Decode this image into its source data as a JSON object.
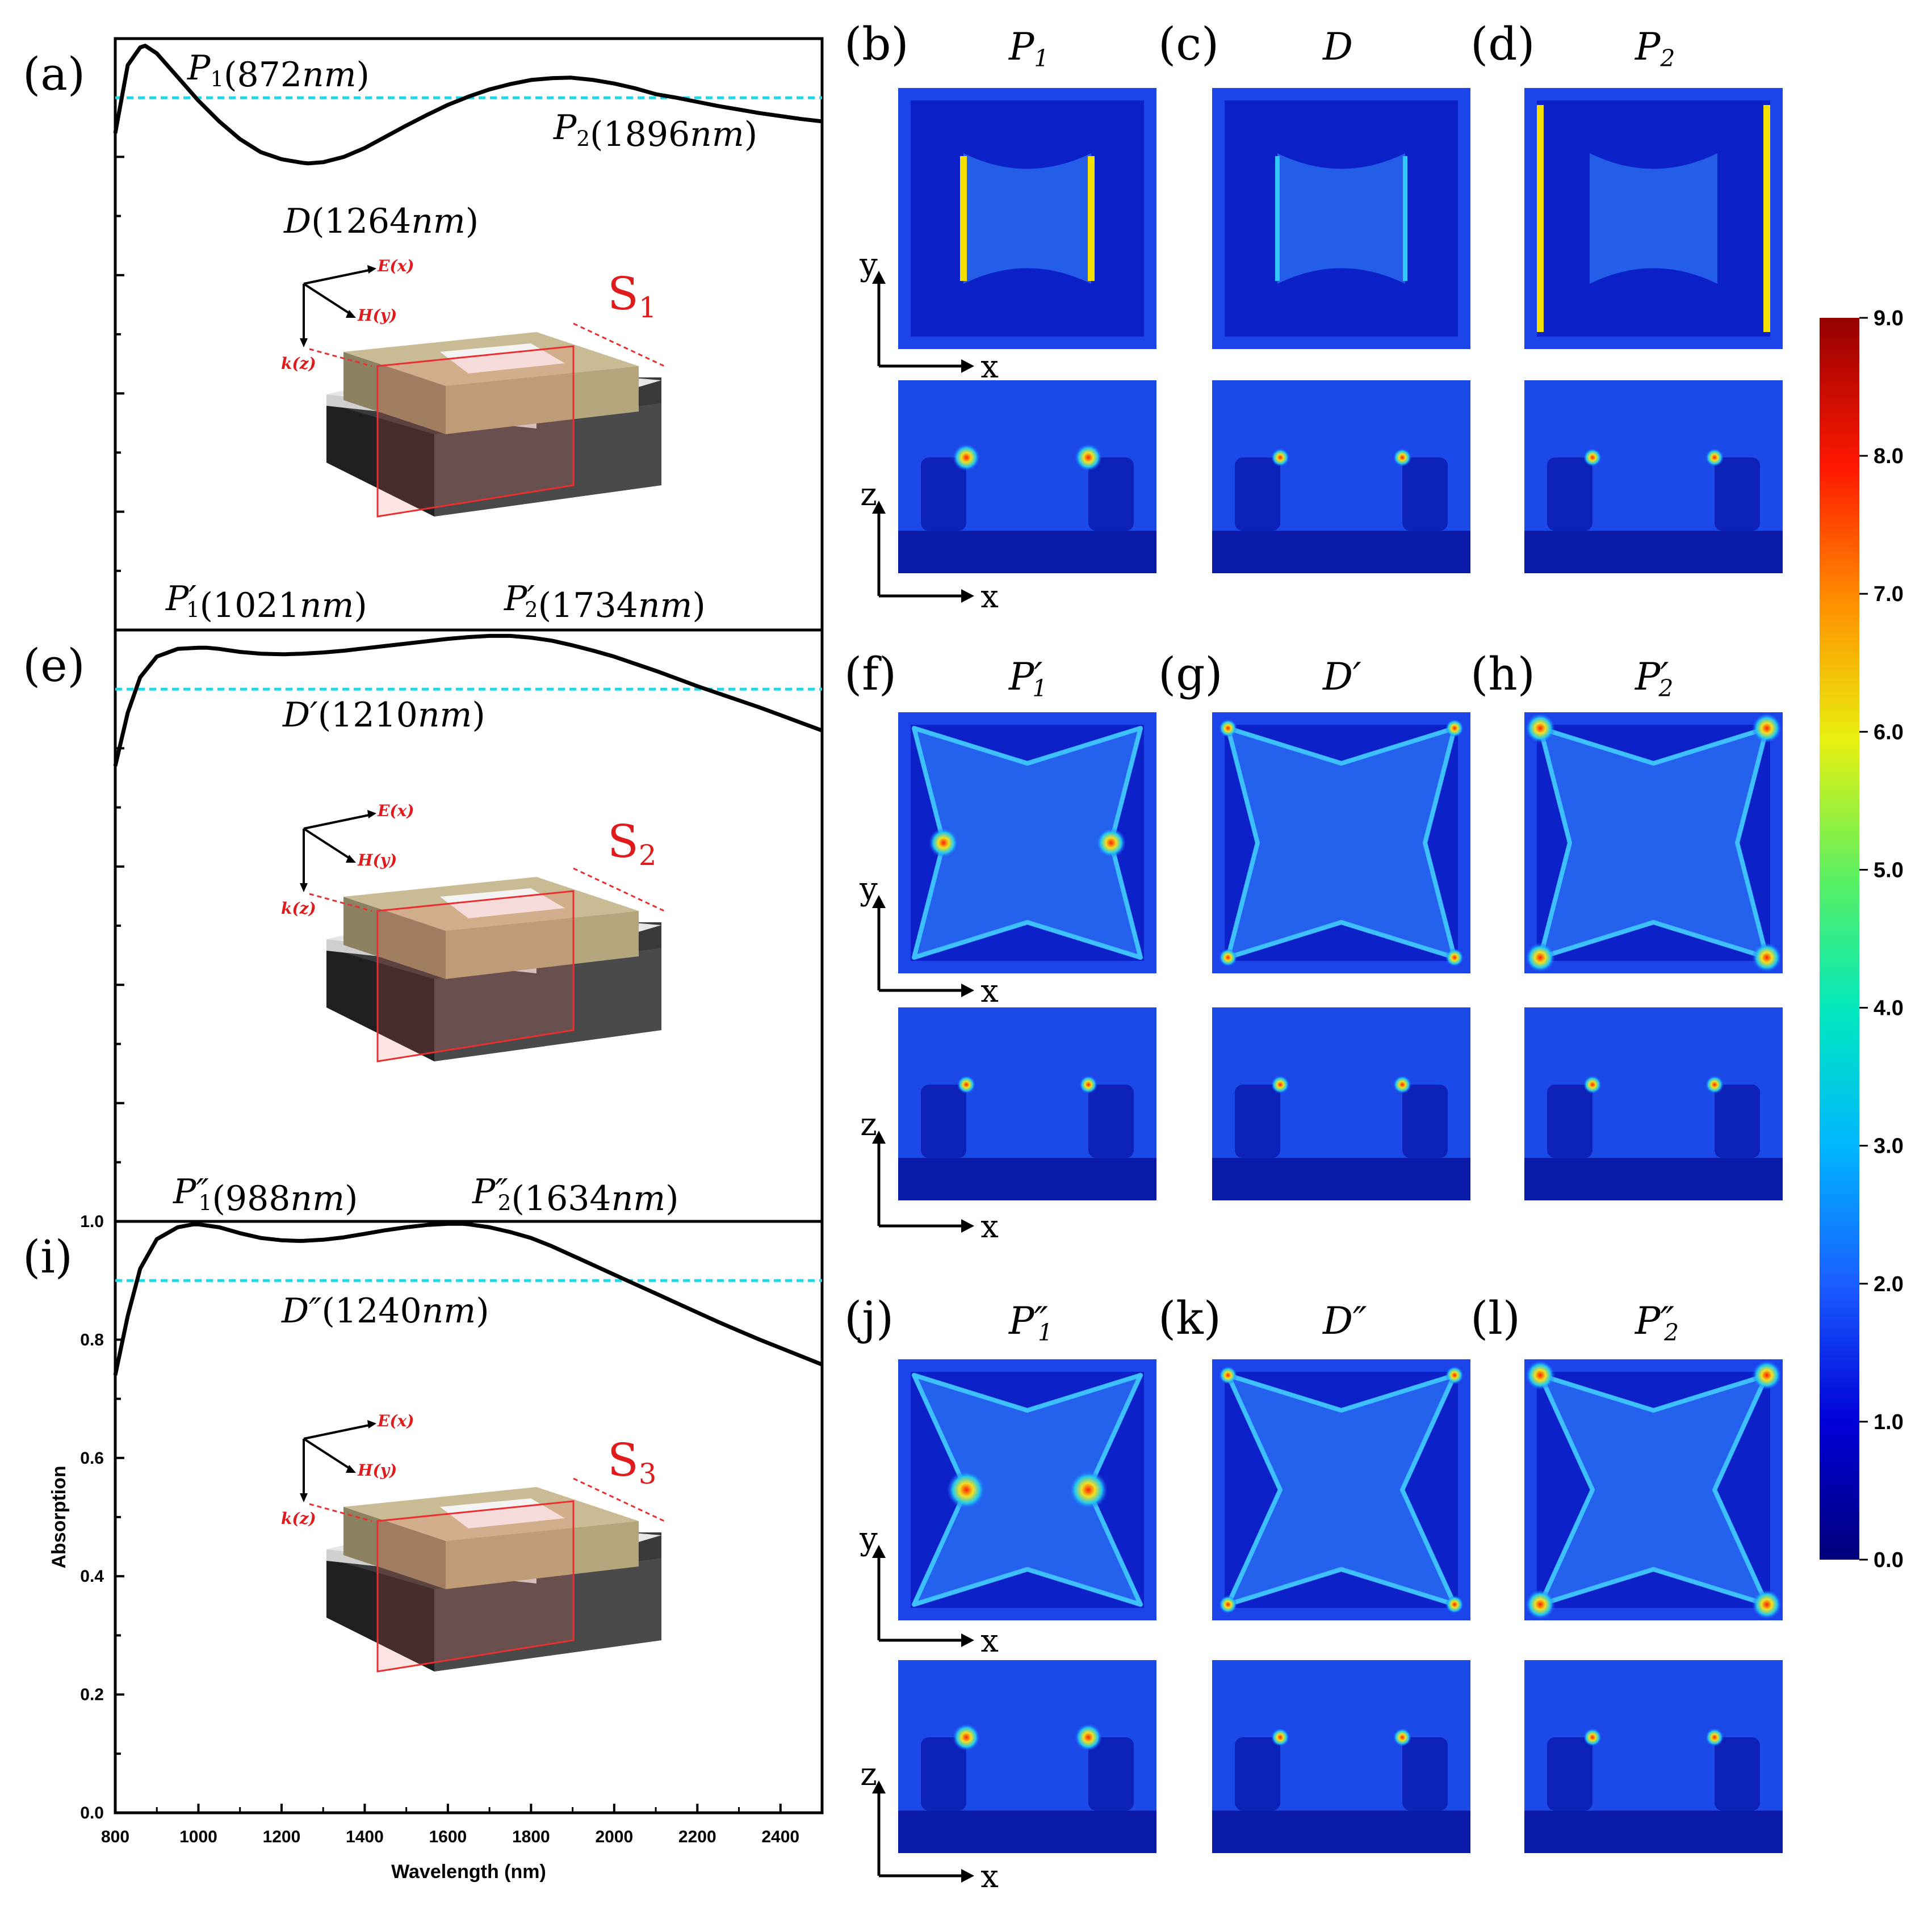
{
  "chart_data": {
    "type": "line",
    "xlabel": "Wavelength (nm)",
    "ylabel": "Absorption",
    "xlim": [
      800,
      2500
    ],
    "ylim": [
      0.0,
      1.0
    ],
    "xticks": [
      "800",
      "1000",
      "1200",
      "1400",
      "1600",
      "1800",
      "2000",
      "2200",
      "2400"
    ],
    "yticks": [
      "0.0",
      "0.2",
      "0.4",
      "0.6",
      "0.8",
      "1.0"
    ],
    "threshold": 0.9,
    "panels": [
      {
        "label": "(a)",
        "structure": "S",
        "structure_sub": "1",
        "series": {
          "x": [
            800,
            830,
            860,
            872,
            900,
            950,
            1000,
            1050,
            1100,
            1150,
            1200,
            1250,
            1264,
            1300,
            1350,
            1400,
            1450,
            1500,
            1550,
            1600,
            1650,
            1700,
            1750,
            1800,
            1850,
            1896,
            1950,
            2000,
            2050,
            2100,
            2150,
            2200,
            2250,
            2300,
            2350,
            2400,
            2450,
            2500
          ],
          "y": [
            0.84,
            0.955,
            0.985,
            0.988,
            0.975,
            0.935,
            0.895,
            0.86,
            0.83,
            0.808,
            0.796,
            0.79,
            0.789,
            0.791,
            0.8,
            0.815,
            0.834,
            0.853,
            0.871,
            0.888,
            0.902,
            0.914,
            0.923,
            0.93,
            0.933,
            0.934,
            0.93,
            0.924,
            0.916,
            0.906,
            0.9,
            0.893,
            0.886,
            0.88,
            0.874,
            0.869,
            0.864,
            0.86
          ]
        },
        "annotations": [
          {
            "sym": "P",
            "sub": "1",
            "prime": "",
            "text": "(872nm)"
          },
          {
            "sym": "P",
            "sub": "2",
            "prime": "",
            "text": "(1896nm)"
          },
          {
            "sym": "D",
            "sub": "",
            "prime": "",
            "text": "(1264nm)"
          }
        ]
      },
      {
        "label": "(e)",
        "structure": "S",
        "structure_sub": "2",
        "series": {
          "x": [
            800,
            830,
            860,
            900,
            950,
            1000,
            1021,
            1050,
            1100,
            1150,
            1200,
            1210,
            1250,
            1300,
            1350,
            1400,
            1450,
            1500,
            1550,
            1600,
            1650,
            1700,
            1734,
            1750,
            1800,
            1850,
            1900,
            1950,
            2000,
            2050,
            2100,
            2150,
            2200,
            2250,
            2300,
            2350,
            2400,
            2450,
            2500
          ],
          "y": [
            0.77,
            0.86,
            0.92,
            0.955,
            0.968,
            0.97,
            0.97,
            0.968,
            0.963,
            0.96,
            0.959,
            0.959,
            0.96,
            0.962,
            0.965,
            0.969,
            0.973,
            0.977,
            0.981,
            0.985,
            0.988,
            0.99,
            0.99,
            0.99,
            0.987,
            0.982,
            0.974,
            0.965,
            0.955,
            0.943,
            0.931,
            0.918,
            0.905,
            0.893,
            0.881,
            0.869,
            0.856,
            0.843,
            0.83
          ]
        },
        "annotations": [
          {
            "sym": "P",
            "sub": "1",
            "prime": "′",
            "text": "(1021nm)"
          },
          {
            "sym": "P",
            "sub": "2",
            "prime": "′",
            "text": "(1734nm)"
          },
          {
            "sym": "D",
            "sub": "",
            "prime": "′",
            "text": "(1210nm)"
          }
        ]
      },
      {
        "label": "(i)",
        "structure": "S",
        "structure_sub": "3",
        "series": {
          "x": [
            800,
            830,
            860,
            900,
            950,
            988,
            1000,
            1050,
            1100,
            1150,
            1200,
            1240,
            1250,
            1300,
            1350,
            1400,
            1450,
            1500,
            1550,
            1600,
            1634,
            1650,
            1700,
            1750,
            1800,
            1850,
            1900,
            1950,
            2000,
            2050,
            2100,
            2150,
            2200,
            2250,
            2300,
            2350,
            2400,
            2450,
            2500
          ],
          "y": [
            0.74,
            0.84,
            0.92,
            0.97,
            0.99,
            0.995,
            0.995,
            0.99,
            0.98,
            0.972,
            0.968,
            0.967,
            0.967,
            0.969,
            0.973,
            0.979,
            0.985,
            0.99,
            0.994,
            0.996,
            0.996,
            0.995,
            0.99,
            0.982,
            0.972,
            0.958,
            0.942,
            0.926,
            0.91,
            0.894,
            0.878,
            0.862,
            0.846,
            0.83,
            0.815,
            0.8,
            0.786,
            0.772,
            0.758
          ]
        },
        "annotations": [
          {
            "sym": "P",
            "sub": "1",
            "prime": "″",
            "text": "(988nm)"
          },
          {
            "sym": "P",
            "sub": "2",
            "prime": "″",
            "text": "(1634nm)"
          },
          {
            "sym": "D",
            "sub": "",
            "prime": "″",
            "text": "(1240nm)"
          }
        ]
      }
    ],
    "field_maps": {
      "rows": [
        [
          {
            "label": "(b)",
            "sym": "P",
            "sub": "1",
            "prime": ""
          },
          {
            "label": "(c)",
            "sym": "D",
            "sub": "",
            "prime": ""
          },
          {
            "label": "(d)",
            "sym": "P",
            "sub": "2",
            "prime": ""
          }
        ],
        [
          {
            "label": "(f)",
            "sym": "P",
            "sub": "1",
            "prime": "′"
          },
          {
            "label": "(g)",
            "sym": "D",
            "sub": "",
            "prime": "′"
          },
          {
            "label": "(h)",
            "sym": "P",
            "sub": "2",
            "prime": "′"
          }
        ],
        [
          {
            "label": "(j)",
            "sym": "P",
            "sub": "1",
            "prime": "″"
          },
          {
            "label": "(k)",
            "sym": "D",
            "sub": "",
            "prime": "″"
          },
          {
            "label": "(l)",
            "sym": "P",
            "sub": "2",
            "prime": "″"
          }
        ]
      ],
      "axis_labels": {
        "x": "x",
        "y": "y",
        "z": "z"
      }
    },
    "colorbar": {
      "ticks": [
        "9.0",
        "8.0",
        "7.0",
        "6.0",
        "5.0",
        "4.0",
        "3.0",
        "2.0",
        "1.0",
        "0.0"
      ],
      "min": 0.0,
      "max": 9.0
    },
    "diagram_labels": {
      "e": "E(x)",
      "h": "H(y)",
      "k": "k(z)"
    }
  },
  "colors": {
    "curve": "#000000",
    "threshold": "#22d6e6",
    "structure_label": "#e01b1b",
    "map_bg": "#1a3ce6"
  }
}
